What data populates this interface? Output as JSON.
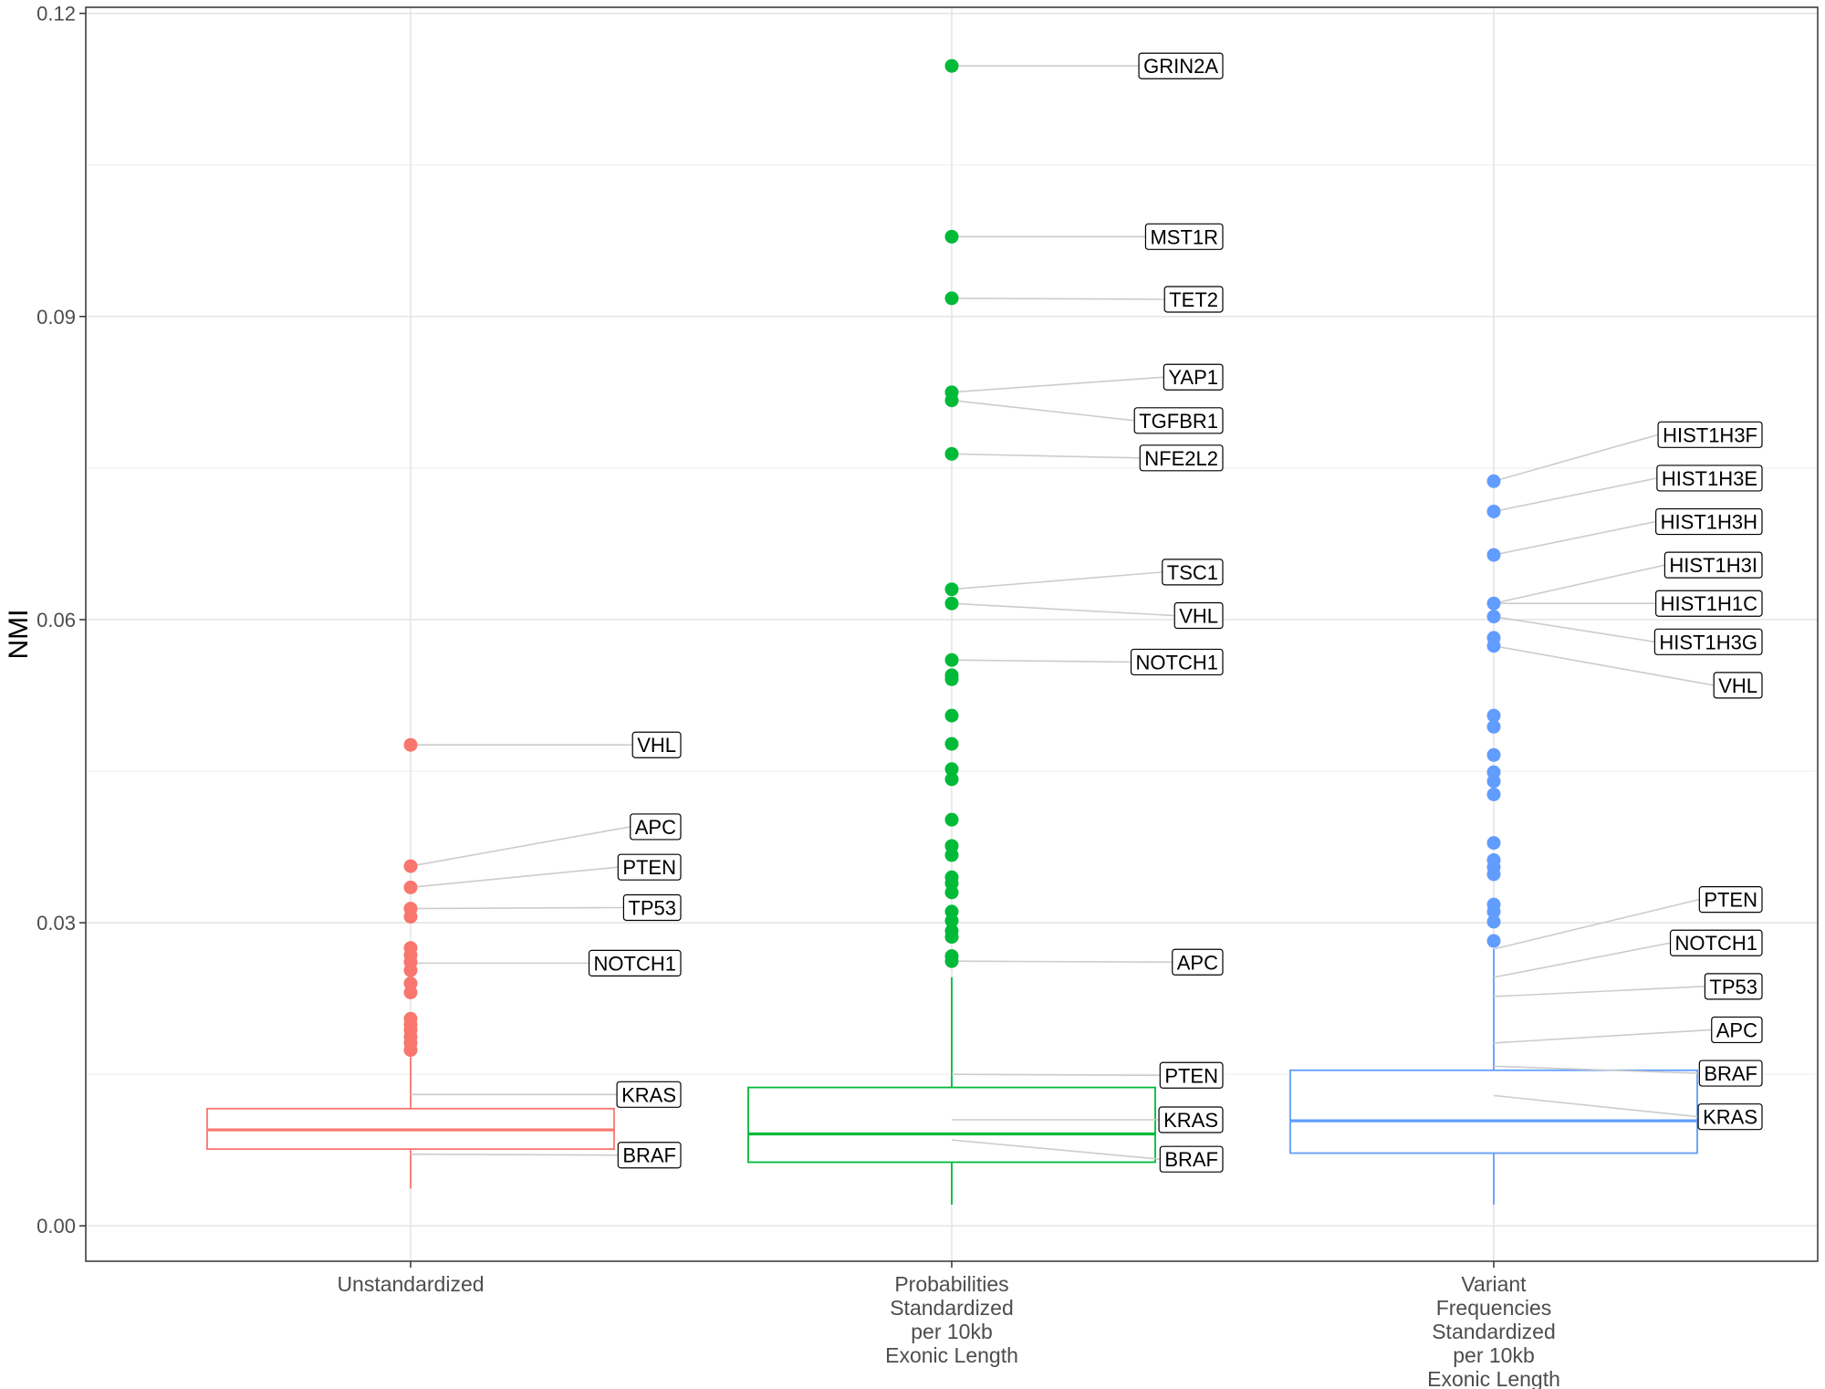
{
  "chart_data": {
    "type": "box",
    "ylabel": "NMI",
    "xlabel": "",
    "ylim": [
      -0.0035,
      0.1206
    ],
    "yticks": [
      "0.00",
      "0.03",
      "0.06",
      "0.09",
      "0.12"
    ],
    "ytick_values": [
      0,
      0.03,
      0.06,
      0.09,
      0.12
    ],
    "grid": true,
    "legend": "none",
    "categories": [
      [
        "Unstandardized"
      ],
      [
        "Probabilities",
        "Standardized",
        "per 10kb",
        "Exonic Length"
      ],
      [
        "Variant",
        "Frequencies",
        "Standardized",
        "per 10kb",
        "Exonic Length"
      ]
    ],
    "series": [
      {
        "color": "#F8766D",
        "box": {
          "q1": 0.0076,
          "median": 0.0095,
          "q3": 0.0116,
          "whisker_low": 0.0037,
          "whisker_high": 0.0167
        },
        "outliers": [
          0.0476,
          0.0356,
          0.0335,
          0.0314,
          0.0306,
          0.0275,
          0.0268,
          0.0261,
          0.0253,
          0.024,
          0.0231,
          0.0205,
          0.0199,
          0.0194,
          0.0187,
          0.0181,
          0.0174
        ],
        "labels": [
          {
            "text": "VHL",
            "value": 0.0476,
            "label_value": 0.0476
          },
          {
            "text": "APC",
            "value": 0.0356,
            "label_value": 0.0395
          },
          {
            "text": "PTEN",
            "value": 0.0335,
            "label_value": 0.0355
          },
          {
            "text": "TP53",
            "value": 0.0314,
            "label_value": 0.0315
          },
          {
            "text": "NOTCH1",
            "value": 0.026,
            "label_value": 0.026
          },
          {
            "text": "KRAS",
            "value": 0.013,
            "label_value": 0.013
          },
          {
            "text": "BRAF",
            "value": 0.0071,
            "label_value": 0.007
          }
        ]
      },
      {
        "color": "#00BA38",
        "box": {
          "q1": 0.0063,
          "median": 0.0091,
          "q3": 0.0137,
          "whisker_low": 0.0021,
          "whisker_high": 0.0246
        },
        "outliers": [
          0.1148,
          0.0979,
          0.0918,
          0.0825,
          0.0817,
          0.0764,
          0.063,
          0.0616,
          0.056,
          0.0545,
          0.0541,
          0.0505,
          0.0477,
          0.0452,
          0.0442,
          0.0402,
          0.0376,
          0.0367,
          0.0345,
          0.0339,
          0.033,
          0.0311,
          0.0302,
          0.0292,
          0.0286,
          0.0267,
          0.0262
        ],
        "labels": [
          {
            "text": "GRIN2A",
            "value": 0.1148,
            "label_value": 0.1148
          },
          {
            "text": "MST1R",
            "value": 0.0979,
            "label_value": 0.0979
          },
          {
            "text": "TET2",
            "value": 0.0918,
            "label_value": 0.0917
          },
          {
            "text": "YAP1",
            "value": 0.0825,
            "label_value": 0.084
          },
          {
            "text": "TGFBR1",
            "value": 0.0817,
            "label_value": 0.0797
          },
          {
            "text": "NFE2L2",
            "value": 0.0764,
            "label_value": 0.076
          },
          {
            "text": "TSC1",
            "value": 0.063,
            "label_value": 0.0647
          },
          {
            "text": "VHL",
            "value": 0.0616,
            "label_value": 0.0604
          },
          {
            "text": "NOTCH1",
            "value": 0.056,
            "label_value": 0.0558
          },
          {
            "text": "APC",
            "value": 0.0262,
            "label_value": 0.0261
          },
          {
            "text": "PTEN",
            "value": 0.015,
            "label_value": 0.0149
          },
          {
            "text": "KRAS",
            "value": 0.0105,
            "label_value": 0.0105
          },
          {
            "text": "BRAF",
            "value": 0.0085,
            "label_value": 0.0066
          }
        ]
      },
      {
        "color": "#619CFF",
        "box": {
          "q1": 0.0072,
          "median": 0.0104,
          "q3": 0.0154,
          "whisker_low": 0.0021,
          "whisker_high": 0.0274
        },
        "outliers": [
          0.0737,
          0.0707,
          0.0664,
          0.0616,
          0.0603,
          0.0582,
          0.0574,
          0.0505,
          0.0494,
          0.0466,
          0.0449,
          0.044,
          0.0427,
          0.0379,
          0.0362,
          0.0355,
          0.0348,
          0.0318,
          0.0311,
          0.0301,
          0.0282
        ],
        "labels": [
          {
            "text": "HIST1H3F",
            "value": 0.0737,
            "label_value": 0.0783
          },
          {
            "text": "HIST1H3E",
            "value": 0.0707,
            "label_value": 0.074
          },
          {
            "text": "HIST1H3H",
            "value": 0.0664,
            "label_value": 0.0697
          },
          {
            "text": "HIST1H3I",
            "value": 0.0616,
            "label_value": 0.0654
          },
          {
            "text": "HIST1H1C",
            "value": 0.0616,
            "label_value": 0.0616
          },
          {
            "text": "HIST1H3G",
            "value": 0.0603,
            "label_value": 0.0578
          },
          {
            "text": "VHL",
            "value": 0.0574,
            "label_value": 0.0535
          },
          {
            "text": "PTEN",
            "value": 0.0274,
            "label_value": 0.0323
          },
          {
            "text": "NOTCH1",
            "value": 0.0246,
            "label_value": 0.028
          },
          {
            "text": "TP53",
            "value": 0.0227,
            "label_value": 0.0237
          },
          {
            "text": "APC",
            "value": 0.0181,
            "label_value": 0.0194
          },
          {
            "text": "BRAF",
            "value": 0.0158,
            "label_value": 0.0151
          },
          {
            "text": "KRAS",
            "value": 0.0129,
            "label_value": 0.0108
          }
        ]
      }
    ]
  }
}
